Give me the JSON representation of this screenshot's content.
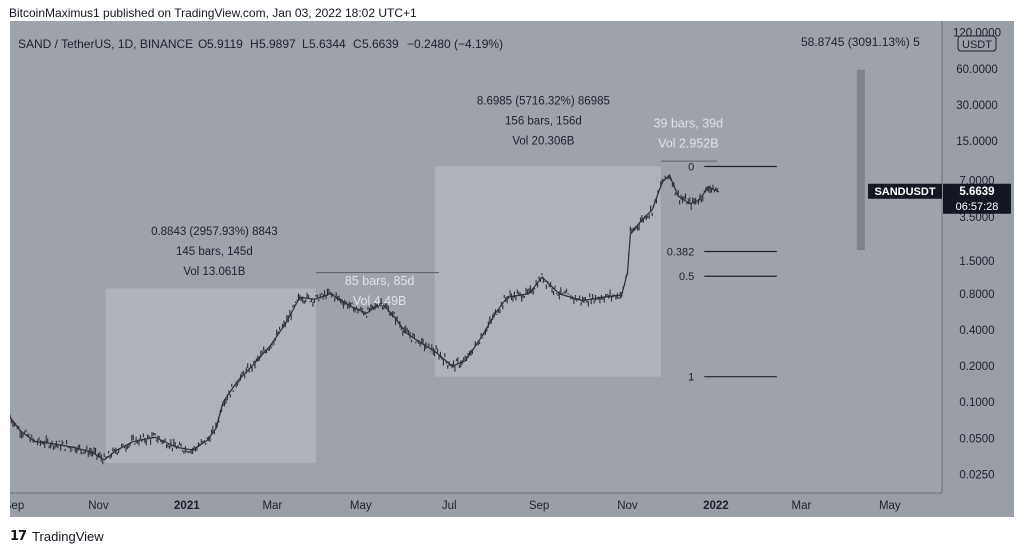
{
  "publisher": "BitcoinMaximus1 published on TradingView.com, Jan 03, 2022 18:02 UTC+1",
  "footer": {
    "logo": "17",
    "brand": "TradingView"
  },
  "colors": {
    "background": "#9a9ea6",
    "plot": "#9ea2aa",
    "box": "#b2b5bb",
    "candle": "#2c2f36",
    "axisText": "#1e222d",
    "selection": "#808389"
  },
  "chart_data": {
    "type": "line",
    "symbol_line": "SAND / TetherUS, 1D, BINANCE",
    "ohlc": {
      "o_label": "O",
      "o": "5.9119",
      "h_label": "H",
      "h": "5.9897",
      "l_label": "L",
      "l": "5.6344",
      "c_label": "C",
      "c": "5.6639",
      "change": "−0.2480 (−4.19%)"
    },
    "top_right_measure": "58.8745 (3091.13%) 5",
    "currency": "USDT",
    "y_scale": "log",
    "y_ticks": [
      {
        "value": 120,
        "label": "120.0000"
      },
      {
        "value": 60,
        "label": "60.0000"
      },
      {
        "value": 30,
        "label": "30.0000"
      },
      {
        "value": 15,
        "label": "15.0000"
      },
      {
        "value": 7,
        "label": "7.0000"
      },
      {
        "value": 3.5,
        "label": "3.5000"
      },
      {
        "value": 1.5,
        "label": "1.5000"
      },
      {
        "value": 0.8,
        "label": "0.8000"
      },
      {
        "value": 0.4,
        "label": "0.4000"
      },
      {
        "value": 0.2,
        "label": "0.2000"
      },
      {
        "value": 0.1,
        "label": "0.1000"
      },
      {
        "value": 0.05,
        "label": "0.0500"
      },
      {
        "value": 0.025,
        "label": "0.0250"
      }
    ],
    "x_ticks": [
      {
        "date": "2020-09-01",
        "label": "Sep"
      },
      {
        "date": "2020-11-01",
        "label": "Nov"
      },
      {
        "date": "2021-01-01",
        "label": "2021"
      },
      {
        "date": "2021-03-01",
        "label": "Mar"
      },
      {
        "date": "2021-05-01",
        "label": "May"
      },
      {
        "date": "2021-07-01",
        "label": "Jul"
      },
      {
        "date": "2021-09-01",
        "label": "Sep"
      },
      {
        "date": "2021-11-01",
        "label": "Nov"
      },
      {
        "date": "2022-01-01",
        "label": "2022"
      },
      {
        "date": "2022-03-01",
        "label": "Mar"
      },
      {
        "date": "2022-05-01",
        "label": "May"
      }
    ],
    "x_range": [
      "2020-09-01",
      "2022-06-06"
    ],
    "y_range": [
      0.0175,
      150
    ],
    "price_series": [
      {
        "x": "2020-09-01",
        "y": 0.075
      },
      {
        "x": "2020-09-08",
        "y": 0.058
      },
      {
        "x": "2020-09-18",
        "y": 0.047
      },
      {
        "x": "2020-10-01",
        "y": 0.045
      },
      {
        "x": "2020-10-15",
        "y": 0.042
      },
      {
        "x": "2020-10-28",
        "y": 0.038
      },
      {
        "x": "2020-11-05",
        "y": 0.033
      },
      {
        "x": "2020-11-14",
        "y": 0.04
      },
      {
        "x": "2020-11-25",
        "y": 0.047
      },
      {
        "x": "2020-12-10",
        "y": 0.051
      },
      {
        "x": "2020-12-25",
        "y": 0.042
      },
      {
        "x": "2021-01-05",
        "y": 0.04
      },
      {
        "x": "2021-01-15",
        "y": 0.048
      },
      {
        "x": "2021-01-21",
        "y": 0.06
      },
      {
        "x": "2021-01-26",
        "y": 0.1
      },
      {
        "x": "2021-02-05",
        "y": 0.15
      },
      {
        "x": "2021-02-15",
        "y": 0.2
      },
      {
        "x": "2021-02-28",
        "y": 0.3
      },
      {
        "x": "2021-03-10",
        "y": 0.45
      },
      {
        "x": "2021-03-20",
        "y": 0.75
      },
      {
        "x": "2021-03-30",
        "y": 0.72
      },
      {
        "x": "2021-04-10",
        "y": 0.8
      },
      {
        "x": "2021-04-25",
        "y": 0.62
      },
      {
        "x": "2021-05-05",
        "y": 0.55
      },
      {
        "x": "2021-05-15",
        "y": 0.68
      },
      {
        "x": "2021-05-25",
        "y": 0.5
      },
      {
        "x": "2021-06-01",
        "y": 0.38
      },
      {
        "x": "2021-06-10",
        "y": 0.32
      },
      {
        "x": "2021-06-22",
        "y": 0.26
      },
      {
        "x": "2021-07-03",
        "y": 0.2
      },
      {
        "x": "2021-07-12",
        "y": 0.22
      },
      {
        "x": "2021-07-22",
        "y": 0.33
      },
      {
        "x": "2021-08-02",
        "y": 0.55
      },
      {
        "x": "2021-08-10",
        "y": 0.75
      },
      {
        "x": "2021-08-25",
        "y": 0.8
      },
      {
        "x": "2021-09-03",
        "y": 1.1
      },
      {
        "x": "2021-09-15",
        "y": 0.8
      },
      {
        "x": "2021-10-01",
        "y": 0.7
      },
      {
        "x": "2021-10-15",
        "y": 0.75
      },
      {
        "x": "2021-10-28",
        "y": 0.78
      },
      {
        "x": "2021-11-01",
        "y": 1.2
      },
      {
        "x": "2021-11-03",
        "y": 2.5
      },
      {
        "x": "2021-11-10",
        "y": 3.2
      },
      {
        "x": "2021-11-18",
        "y": 4.0
      },
      {
        "x": "2021-11-25",
        "y": 6.8
      },
      {
        "x": "2021-11-30",
        "y": 7.8
      },
      {
        "x": "2021-12-06",
        "y": 5.2
      },
      {
        "x": "2021-12-14",
        "y": 4.5
      },
      {
        "x": "2021-12-20",
        "y": 4.8
      },
      {
        "x": "2021-12-27",
        "y": 6.2
      },
      {
        "x": "2022-01-03",
        "y": 5.66
      }
    ],
    "rectangles": [
      {
        "x0": "2020-11-06",
        "x1": "2021-03-31",
        "y0": 0.031,
        "y1": 0.886
      },
      {
        "x0": "2021-06-21",
        "x1": "2021-11-24",
        "y0": 0.163,
        "y1": 9.2
      }
    ],
    "range_lines": [
      {
        "x0": "2021-03-31",
        "x1": "2021-06-24",
        "y": 1.2
      },
      {
        "x0": "2021-11-24",
        "x1": "2022-01-02",
        "y": 10.2
      }
    ],
    "annotations": [
      {
        "lines": [
          "0.8843 (2957.93%) 8843",
          "145 bars, 145d",
          "Vol 13.061B"
        ],
        "x": "2021-01-20",
        "y_top": 2.48,
        "color": "dark"
      },
      {
        "lines": [
          "85 bars, 85d",
          "Vol 4.49B"
        ],
        "x": "2021-05-14",
        "y_top": 0.95,
        "color": "light"
      },
      {
        "lines": [
          "8.6985 (5716.32%) 86985",
          "156 bars, 156d",
          "Vol 20.306B"
        ],
        "x": "2021-09-04",
        "y_top": 30.2,
        "color": "dark"
      },
      {
        "lines": [
          "39 bars, 39d",
          "Vol 2.952B"
        ],
        "x": "2021-12-13",
        "y_top": 19.5,
        "color": "light"
      }
    ],
    "fib_levels": [
      {
        "label": "0",
        "price": 9.2
      },
      {
        "label": "0.382",
        "price": 1.8
      },
      {
        "label": "0.5",
        "price": 1.12
      },
      {
        "label": "1",
        "price": 0.163
      }
    ],
    "fib_x": [
      "2021-12-24",
      "2022-02-12"
    ],
    "measure_bar": {
      "x": "2022-04-11",
      "y0": 1.85,
      "y1": 58.9
    },
    "last_price": {
      "symbol": "SANDUSDT",
      "price": "5.6639",
      "countdown": "06:57:28",
      "value": 5.6639
    }
  }
}
